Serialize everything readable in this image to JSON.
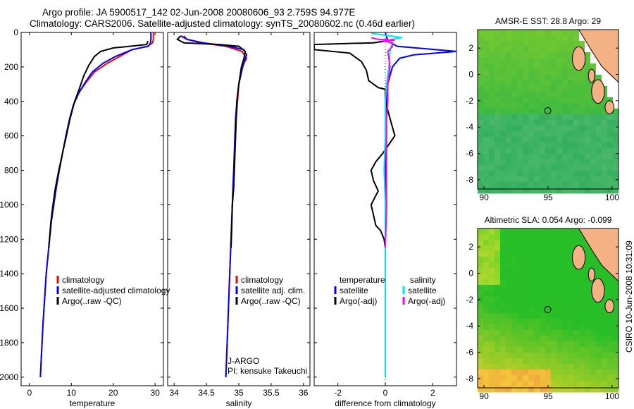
{
  "header": {
    "line1": "Argo profile: JA 5900517_142 02-Jun-2008 20080606_93 2.759S 94.977E",
    "line2": "Climatology: CARS2006. Satellite-adjusted climatology: synTS_20080602.nc (0.46d earlier)"
  },
  "colors": {
    "clim": "#ff0000",
    "sat": "#0000ff",
    "argo": "#000000",
    "sal_sat": "#00e5e5",
    "sal_argo": "#ff00ff",
    "land": "#f4b183",
    "ocean_green": "#3ec23e",
    "ocean_yellow": "#c8e830"
  },
  "footer": {
    "stamp": "CSIRO 10-Jun-2008 10:31:09"
  },
  "chart_data": [
    {
      "id": "temperature",
      "type": "line",
      "xlabel": "temperature",
      "ylabel": "",
      "xlim": [
        -2,
        32
      ],
      "ylim": [
        2050,
        0
      ],
      "xticks": [
        0,
        10,
        20,
        30
      ],
      "yticks": [
        0,
        200,
        400,
        600,
        800,
        1000,
        1200,
        1400,
        1600,
        1800,
        2000
      ],
      "legend": {
        "placement": "bottom-right",
        "entries": [
          "climatology",
          "satellite-adjusted climatology",
          "Argo(..raw -QC)"
        ]
      },
      "series": [
        {
          "name": "climatology",
          "color": "clim",
          "points": [
            [
              29.6,
              0
            ],
            [
              29.6,
              40
            ],
            [
              29.4,
              60
            ],
            [
              28.2,
              80
            ],
            [
              24.5,
              100
            ],
            [
              21.5,
              140
            ],
            [
              18.5,
              180
            ],
            [
              15.5,
              230
            ],
            [
              13.5,
              290
            ],
            [
              11.8,
              350
            ],
            [
              10.5,
              420
            ],
            [
              9.6,
              500
            ],
            [
              8.7,
              600
            ],
            [
              7.9,
              700
            ],
            [
              7.1,
              800
            ],
            [
              6.4,
              900
            ],
            [
              5.8,
              1000
            ],
            [
              5.2,
              1100
            ],
            [
              4.6,
              1250
            ],
            [
              4.0,
              1400
            ],
            [
              3.6,
              1550
            ],
            [
              3.2,
              1700
            ],
            [
              2.9,
              1850
            ],
            [
              2.6,
              2000
            ]
          ]
        },
        {
          "name": "satellite-adjusted climatology",
          "color": "sat",
          "points": [
            [
              29.0,
              0
            ],
            [
              29.0,
              40
            ],
            [
              28.9,
              60
            ],
            [
              28.4,
              80
            ],
            [
              24.5,
              100
            ],
            [
              20.5,
              140
            ],
            [
              17.5,
              180
            ],
            [
              15.0,
              230
            ],
            [
              13.3,
              290
            ],
            [
              11.8,
              350
            ],
            [
              10.5,
              420
            ],
            [
              9.6,
              500
            ],
            [
              8.7,
              600
            ],
            [
              7.9,
              700
            ],
            [
              7.1,
              800
            ],
            [
              6.4,
              900
            ],
            [
              5.8,
              1000
            ],
            [
              5.2,
              1100
            ],
            [
              4.6,
              1250
            ],
            [
              4.0,
              1400
            ],
            [
              3.6,
              1550
            ],
            [
              3.2,
              1700
            ],
            [
              2.9,
              1850
            ],
            [
              2.6,
              2000
            ]
          ]
        },
        {
          "name": "Argo(..raw -QC)",
          "color": "argo",
          "points": [
            [
              28.3,
              50
            ],
            [
              28.0,
              70
            ],
            [
              24.0,
              80
            ],
            [
              20.0,
              90
            ],
            [
              17.0,
              110
            ],
            [
              15.5,
              140
            ],
            [
              14.2,
              190
            ],
            [
              13.0,
              250
            ],
            [
              12.0,
              320
            ],
            [
              10.8,
              400
            ],
            [
              9.7,
              500
            ],
            [
              8.8,
              600
            ],
            [
              7.9,
              700
            ],
            [
              7.0,
              800
            ],
            [
              6.2,
              900
            ],
            [
              5.6,
              1000
            ],
            [
              5.1,
              1100
            ],
            [
              4.6,
              1250
            ]
          ]
        }
      ]
    },
    {
      "id": "salinity",
      "type": "line",
      "xlabel": "salinity",
      "ylabel": "",
      "xlim": [
        33.9,
        36.1
      ],
      "ylim": [
        2050,
        0
      ],
      "xticks": [
        34,
        34.5,
        35,
        35.5,
        36
      ],
      "xticklabels": [
        "34",
        "34.5",
        "35",
        "35.5",
        "36"
      ],
      "legend": {
        "placement": "bottom-right",
        "entries": [
          "climatology",
          "satellite adj. clim.",
          "Argo(..raw -QC)"
        ]
      },
      "annotations": [
        "J-ARGO",
        "PI: kensuke Takeuchi"
      ],
      "series": [
        {
          "name": "climatology",
          "color": "clim",
          "points": [
            [
              34.15,
              20
            ],
            [
              34.2,
              40
            ],
            [
              34.4,
              60
            ],
            [
              34.8,
              80
            ],
            [
              35.05,
              110
            ],
            [
              35.12,
              150
            ],
            [
              35.05,
              200
            ],
            [
              35.0,
              300
            ],
            [
              34.98,
              400
            ],
            [
              34.96,
              500
            ],
            [
              34.95,
              600
            ],
            [
              34.94,
              700
            ],
            [
              34.93,
              800
            ],
            [
              34.92,
              900
            ],
            [
              34.9,
              1000
            ],
            [
              34.88,
              1200
            ],
            [
              34.86,
              1400
            ],
            [
              34.84,
              1600
            ],
            [
              34.82,
              1800
            ],
            [
              34.8,
              2000
            ]
          ]
        },
        {
          "name": "satellite adj. clim.",
          "color": "sat",
          "points": [
            [
              34.1,
              20
            ],
            [
              34.2,
              40
            ],
            [
              34.45,
              60
            ],
            [
              34.85,
              80
            ],
            [
              35.08,
              100
            ],
            [
              35.12,
              130
            ],
            [
              35.06,
              200
            ],
            [
              35.0,
              300
            ],
            [
              34.97,
              400
            ],
            [
              34.95,
              500
            ],
            [
              34.94,
              600
            ],
            [
              34.93,
              700
            ],
            [
              34.92,
              800
            ],
            [
              34.91,
              900
            ],
            [
              34.9,
              1000
            ],
            [
              34.88,
              1200
            ],
            [
              34.86,
              1400
            ],
            [
              34.84,
              1600
            ],
            [
              34.82,
              1800
            ],
            [
              34.8,
              2000
            ]
          ]
        },
        {
          "name": "Argo(..raw -QC)",
          "color": "argo",
          "points": [
            [
              34.1,
              20
            ],
            [
              34.05,
              40
            ],
            [
              34.15,
              60
            ],
            [
              34.7,
              70
            ],
            [
              35.0,
              80
            ],
            [
              35.1,
              110
            ],
            [
              35.08,
              150
            ],
            [
              35.04,
              200
            ],
            [
              35.0,
              300
            ],
            [
              34.97,
              400
            ],
            [
              34.96,
              500
            ],
            [
              34.95,
              600
            ],
            [
              34.94,
              700
            ],
            [
              34.93,
              800
            ],
            [
              34.92,
              900
            ],
            [
              34.9,
              1000
            ],
            [
              34.89,
              1150
            ],
            [
              34.88,
              1250
            ]
          ]
        }
      ]
    },
    {
      "id": "difference",
      "type": "line",
      "xlabel": "difference from climatology",
      "ylabel": "",
      "xlim": [
        -3,
        3
      ],
      "ylim": [
        2050,
        0
      ],
      "xticks": [
        -2,
        0,
        2
      ],
      "legend": {
        "placement": "bottom",
        "groups": [
          {
            "heading": "temperature",
            "entries": [
              "satellite",
              "Argo(-adj)"
            ]
          },
          {
            "heading": "salinity",
            "entries": [
              "satellite",
              "Argo(-adj)"
            ]
          }
        ]
      },
      "series": [
        {
          "name": "temperature satellite",
          "color": "sat",
          "points": [
            [
              0.0,
              0
            ],
            [
              0.1,
              50
            ],
            [
              0.5,
              80
            ],
            [
              3.0,
              110
            ],
            [
              1.2,
              130
            ],
            [
              0.6,
              150
            ],
            [
              0.3,
              200
            ],
            [
              0.1,
              300
            ],
            [
              0.05,
              400
            ],
            [
              0.02,
              600
            ],
            [
              0.0,
              1000
            ],
            [
              0.0,
              1500
            ],
            [
              0.0,
              2000
            ]
          ]
        },
        {
          "name": "temperature Argo(-adj)",
          "color": "argo",
          "points": [
            [
              0.0,
              50
            ],
            [
              -0.5,
              60
            ],
            [
              -3.0,
              70
            ],
            [
              -3.0,
              100
            ],
            [
              -1.5,
              120
            ],
            [
              -1.0,
              170
            ],
            [
              -0.8,
              220
            ],
            [
              -0.7,
              280
            ],
            [
              -0.3,
              320
            ],
            [
              0.0,
              330
            ],
            [
              0.0,
              400
            ],
            [
              0.2,
              500
            ],
            [
              0.4,
              600
            ],
            [
              -0.1,
              700
            ],
            [
              -0.4,
              750
            ],
            [
              -0.6,
              800
            ],
            [
              -0.5,
              860
            ],
            [
              -0.3,
              920
            ],
            [
              -0.6,
              1000
            ],
            [
              -0.5,
              1060
            ],
            [
              -0.4,
              1120
            ],
            [
              -0.2,
              1150
            ],
            [
              -0.05,
              1200
            ],
            [
              0.0,
              1250
            ]
          ]
        },
        {
          "name": "salinity satellite",
          "color": "sal_sat",
          "points": [
            [
              -0.6,
              5
            ],
            [
              0.2,
              20
            ],
            [
              0.7,
              30
            ],
            [
              0.1,
              45
            ],
            [
              0.3,
              60
            ],
            [
              0.25,
              80
            ],
            [
              0.2,
              110
            ],
            [
              0.15,
              200
            ],
            [
              0.05,
              300
            ],
            [
              0.0,
              400
            ],
            [
              0.0,
              600
            ],
            [
              -0.05,
              800
            ],
            [
              0.0,
              1000
            ],
            [
              0.0,
              1500
            ],
            [
              0.0,
              2000
            ]
          ]
        },
        {
          "name": "salinity Argo(-adj)",
          "color": "sal_argo",
          "points": [
            [
              -0.6,
              30
            ],
            [
              -0.3,
              40
            ],
            [
              0.4,
              45
            ],
            [
              -0.1,
              50
            ],
            [
              0.3,
              60
            ],
            [
              0.3,
              80
            ],
            [
              0.1,
              110
            ],
            [
              0.15,
              150
            ],
            [
              0.2,
              200
            ],
            [
              0.1,
              300
            ],
            [
              0.1,
              400
            ],
            [
              0.05,
              500
            ],
            [
              0.05,
              600
            ],
            [
              0.05,
              800
            ],
            [
              0.05,
              1000
            ],
            [
              0.02,
              1150
            ],
            [
              0.0,
              1250
            ]
          ]
        }
      ]
    },
    {
      "id": "amsre-sst",
      "type": "heatmap",
      "title": "AMSR-E SST: 28.8 Argo: 29",
      "xlim": [
        89.5,
        100.5
      ],
      "ylim": [
        -8.7,
        3.4
      ],
      "xticks": [
        90,
        95,
        100
      ],
      "yticks": [
        2,
        0,
        -2,
        -4,
        -6,
        -8
      ],
      "marker": {
        "lon": 94.977,
        "lat": -2.759
      }
    },
    {
      "id": "altimetric-sla",
      "type": "heatmap",
      "title": "Altimetric SLA: 0.054 Argo: -0.099",
      "xlim": [
        89.5,
        100.5
      ],
      "ylim": [
        -8.7,
        3.4
      ],
      "xticks": [
        90,
        95,
        100
      ],
      "yticks": [
        2,
        0,
        -2,
        -4,
        -6,
        -8
      ],
      "marker": {
        "lon": 94.977,
        "lat": -2.759
      }
    }
  ]
}
